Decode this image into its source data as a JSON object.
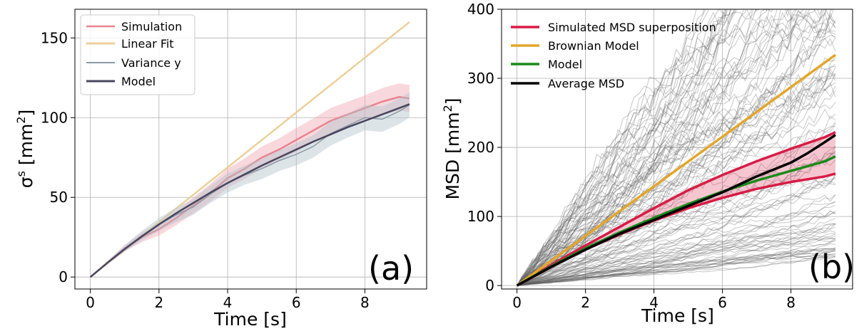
{
  "chart_data": [
    {
      "panel": "(a)",
      "type": "line",
      "xlabel": "Time [s]",
      "ylabel": "σ",
      "ylabel_sup": "s",
      "ylabel_unit": " [mm",
      "ylabel_unit_sup": "2",
      "ylabel_close": "]",
      "xlim": [
        -0.45,
        9.8
      ],
      "ylim": [
        -7.5,
        168
      ],
      "xticks": [
        0,
        2,
        4,
        6,
        8
      ],
      "xtick_labels": [
        "0",
        "2",
        "4",
        "6",
        "8"
      ],
      "yticks": [
        0,
        50,
        100,
        150
      ],
      "ytick_labels": [
        "0",
        "50",
        "100",
        "150"
      ],
      "grid": true,
      "legend_position": "top-left",
      "series": [
        {
          "name": "Simulation",
          "color": "#e8838f",
          "band_color": "#f0a8b4",
          "x": [
            0,
            0.5,
            1,
            1.5,
            2,
            2.5,
            3,
            3.5,
            4,
            4.5,
            5,
            5.5,
            6,
            6.5,
            7,
            7.5,
            8,
            8.5,
            9,
            9.3
          ],
          "values": [
            0,
            9,
            18,
            25,
            30,
            37,
            45,
            53,
            62,
            68,
            75,
            80,
            86,
            92,
            98,
            102,
            106,
            110,
            113,
            112
          ],
          "band": [
            0,
            1,
            2,
            3,
            4,
            4.5,
            5,
            5.5,
            6,
            6.5,
            7,
            7,
            7.5,
            7.5,
            8,
            8,
            8,
            8.5,
            8.5,
            8.5
          ]
        },
        {
          "name": "Linear Fit",
          "color": "#ecd09a",
          "x": [
            0,
            9.3
          ],
          "values": [
            0,
            160
          ]
        },
        {
          "name": "Variance y",
          "color": "#8a9ba6",
          "band_color": "#b4c4cc",
          "x": [
            0,
            0.5,
            1,
            1.5,
            2,
            2.5,
            3,
            3.5,
            4,
            4.5,
            5,
            5.5,
            6,
            6.5,
            7,
            7.5,
            8,
            8.5,
            9,
            9.3
          ],
          "values": [
            0,
            9,
            18,
            26,
            33,
            39,
            44,
            52,
            59,
            64,
            68,
            73,
            77,
            82,
            90,
            95,
            100,
            99,
            104,
            108
          ],
          "band": [
            0,
            1,
            2,
            3,
            4,
            4.5,
            5,
            5.5,
            6,
            6,
            6.5,
            6.5,
            7,
            7,
            7.5,
            7.5,
            8,
            8,
            8,
            8
          ]
        },
        {
          "name": "Model",
          "color": "#48465e",
          "x": [
            0,
            0.5,
            1,
            1.5,
            2,
            2.5,
            3,
            3.5,
            4,
            4.5,
            5,
            5.5,
            6,
            6.5,
            7,
            7.5,
            8,
            8.5,
            9,
            9.3
          ],
          "values": [
            0,
            9,
            17.5,
            25.5,
            33,
            40,
            46.5,
            53,
            59,
            64.5,
            70,
            75,
            80,
            85,
            89.5,
            94,
            98,
            102,
            106,
            108.5
          ]
        }
      ],
      "annotation": "(a)"
    },
    {
      "panel": "(b)",
      "type": "line",
      "xlabel": "Time [s]",
      "ylabel": "MSD [mm",
      "ylabel_sup": "2",
      "ylabel_close": "]",
      "xlim": [
        -0.45,
        9.8
      ],
      "ylim": [
        -5,
        400
      ],
      "xticks": [
        0,
        2,
        4,
        6,
        8
      ],
      "xtick_labels": [
        "0",
        "2",
        "4",
        "6",
        "8"
      ],
      "yticks": [
        0,
        100,
        200,
        300,
        400
      ],
      "ytick_labels": [
        "0",
        "100",
        "200",
        "300",
        "400"
      ],
      "grid": true,
      "legend_position": "top-left",
      "background_trajectories": {
        "count": 120,
        "color": "#606060",
        "t_end": 9.3
      },
      "series": [
        {
          "name": "Simulated MSD superposition",
          "color": "#d81b45",
          "x": [
            0,
            1,
            2,
            3,
            4,
            5,
            6,
            7,
            8,
            9,
            9.3
          ],
          "upper": [
            0,
            30,
            58,
            85,
            112,
            138,
            160,
            180,
            198,
            215,
            222
          ],
          "lower": [
            0,
            27,
            52,
            74,
            94,
            112,
            127,
            140,
            150,
            158,
            162
          ]
        },
        {
          "name": "Brownian Model",
          "color": "#e3a62a",
          "x": [
            0,
            9.3
          ],
          "values": [
            0,
            334
          ]
        },
        {
          "name": "Model",
          "color": "#1a8a1a",
          "x": [
            0,
            1,
            2,
            3,
            4,
            5,
            6,
            7,
            8,
            9,
            9.3
          ],
          "values": [
            0,
            28,
            54,
            77,
            98,
            118,
            136,
            152,
            166,
            180,
            187
          ]
        },
        {
          "name": "Average MSD",
          "color": "#000000",
          "x": [
            0,
            1,
            2,
            3,
            4,
            5,
            6,
            7,
            8,
            8.5,
            9,
            9.3
          ],
          "values": [
            0,
            27,
            52,
            75,
            95,
            115,
            135,
            158,
            178,
            192,
            208,
            218
          ]
        }
      ],
      "annotation": "(b)"
    }
  ]
}
